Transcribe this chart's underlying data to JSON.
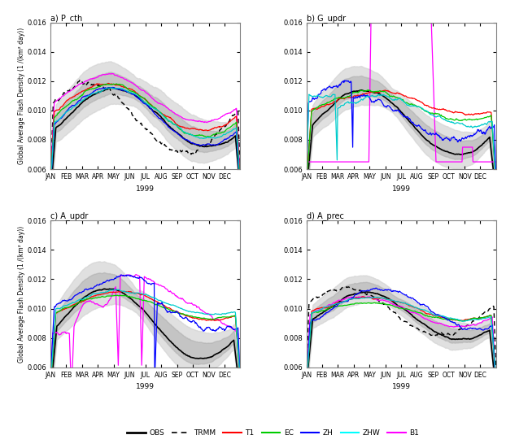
{
  "titles": [
    "a) P_cth",
    "b) G_updr",
    "c) A_updr",
    "d) A_prec"
  ],
  "ylabel": "Global Average Flash Density (1 /(km² day))",
  "xlabel": "1999",
  "months": [
    "JAN",
    "FEB",
    "MAR",
    "APR",
    "MAY",
    "JUN",
    "JUL",
    "AUG",
    "SEP",
    "OCT",
    "NOV",
    "DEC"
  ],
  "ylim": [
    0.006,
    0.016
  ],
  "yticks": [
    0.006,
    0.008,
    0.01,
    0.012,
    0.014,
    0.016
  ],
  "colors": {
    "obs": "#000000",
    "trmm": "#000000",
    "t1": "#ff0000",
    "ec": "#00cc00",
    "zh": "#0000ff",
    "zhw": "#00cccc",
    "b1": "#ff00ff"
  },
  "legend_labels": [
    "OBS",
    "TRMM",
    "T1",
    "EC",
    "ZH",
    "ZHW",
    "B1"
  ]
}
